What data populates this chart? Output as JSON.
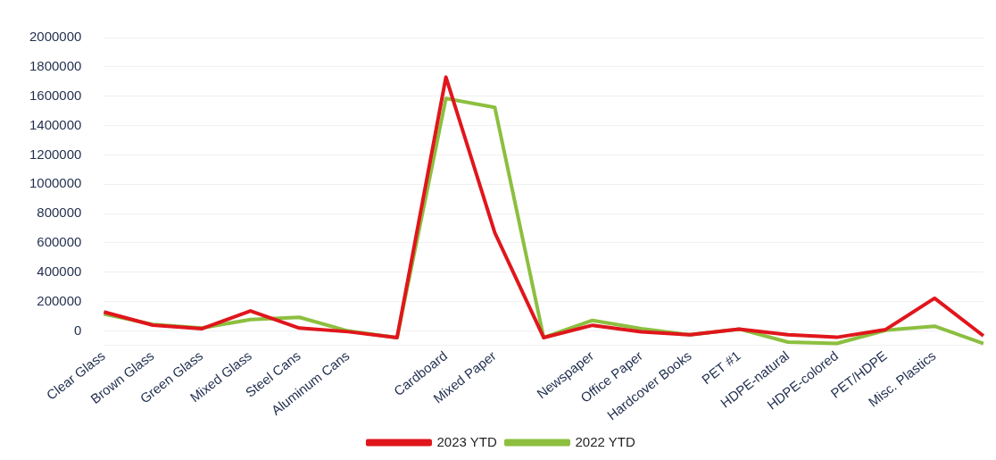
{
  "chart_data": {
    "type": "line",
    "categories": [
      "Clear Glass",
      "Brown Glass",
      "Green Glass",
      "Mixed Glass",
      "Steel Cans",
      "Aluminum Cans",
      null,
      "Cardboard",
      "Mixed Paper",
      null,
      "Newspaper",
      "Office Paper",
      "Hardcover Books",
      "PET #1",
      "HDPE-natural",
      "HDPE-colored",
      "PET/HDPE",
      "Misc. Plastics",
      null
    ],
    "series": [
      {
        "name": "2023 YTD",
        "color": "#e0161c",
        "values": [
          130000,
          40000,
          15000,
          137000,
          20000,
          -5000,
          -45000,
          1730000,
          670000,
          -45000,
          39000,
          -6000,
          -26000,
          13000,
          -26000,
          -43000,
          10000,
          223000,
          -33000
        ]
      },
      {
        "name": "2022 YTD",
        "color": "#8cbf3f",
        "values": [
          115000,
          45000,
          20000,
          78000,
          93000,
          0,
          -45000,
          1585000,
          1524000,
          -45000,
          72000,
          15000,
          -26000,
          13000,
          -76000,
          -85000,
          5000,
          33000,
          -85000
        ]
      }
    ],
    "ylim": [
      -100000,
      2000000
    ],
    "yticks": [
      {
        "value": -100000,
        "label": null
      },
      0,
      200000,
      400000,
      600000,
      800000,
      1000000,
      1200000,
      1400000,
      1600000,
      1800000,
      2000000
    ],
    "grid": "y",
    "legend": "bottom",
    "marker": "none",
    "line_style": "solid"
  }
}
